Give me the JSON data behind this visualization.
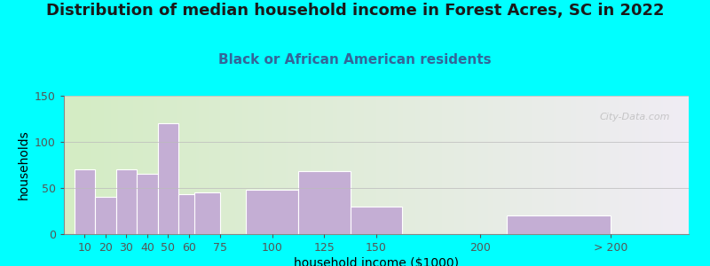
{
  "title": "Distribution of median household income in Forest Acres, SC in 2022",
  "subtitle": "Black or African American residents",
  "xlabel": "household income ($1000)",
  "ylabel": "households",
  "background_color": "#00FFFF",
  "plot_bg_gradient_left": "#d4edc4",
  "plot_bg_gradient_right": "#f0ecf4",
  "bar_color": "#c4aed4",
  "bar_edge_color": "#ffffff",
  "ylim": [
    0,
    150
  ],
  "yticks": [
    0,
    50,
    100,
    150
  ],
  "bar_lefts": [
    5,
    15,
    25,
    35,
    45,
    55,
    62.5,
    87.5,
    112.5,
    137.5,
    212.5
  ],
  "bar_widths": [
    10,
    10,
    10,
    10,
    10,
    10,
    12.5,
    25,
    25,
    25,
    50
  ],
  "bar_labels": [
    "10",
    "20",
    "30",
    "40",
    "50",
    "60",
    "75",
    "100",
    "125",
    "150",
    "> 200"
  ],
  "label_positions": [
    10,
    20,
    30,
    40,
    50,
    60,
    75,
    100,
    125,
    150,
    200,
    "> 200"
  ],
  "xtick_vals": [
    10,
    20,
    30,
    40,
    50,
    60,
    75,
    100,
    125,
    150,
    200
  ],
  "xtick_extra": 262.5,
  "xtick_extra_label": "> 200",
  "values": [
    70,
    40,
    70,
    65,
    120,
    43,
    45,
    48,
    68,
    30,
    20
  ],
  "xlim": [
    0,
    300
  ],
  "title_fontsize": 13,
  "subtitle_fontsize": 11,
  "axis_label_fontsize": 10,
  "tick_fontsize": 9,
  "watermark_text": "City-Data.com"
}
